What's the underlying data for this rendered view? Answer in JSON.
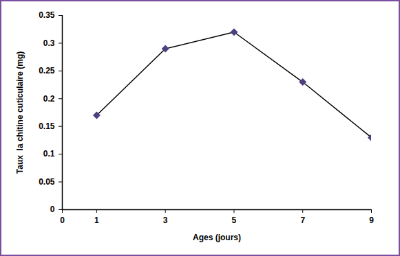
{
  "chart_data": {
    "type": "line",
    "x_label": "Ages (jours)",
    "y_label": "Taux  la chitine cuticulaire (mg)",
    "x": [
      1,
      3,
      5,
      7,
      9
    ],
    "values": [
      0.17,
      0.29,
      0.32,
      0.23,
      0.13
    ],
    "xlim": [
      0,
      9
    ],
    "xticks": [
      0,
      1,
      3,
      5,
      7,
      9
    ],
    "ylim": [
      0,
      0.35
    ],
    "yticks": [
      0,
      0.05,
      0.1,
      0.15,
      0.2,
      0.25,
      0.3,
      0.35
    ],
    "color": "#4f3f7f",
    "marker": "diamond",
    "line_style": "solid",
    "grid": false
  }
}
